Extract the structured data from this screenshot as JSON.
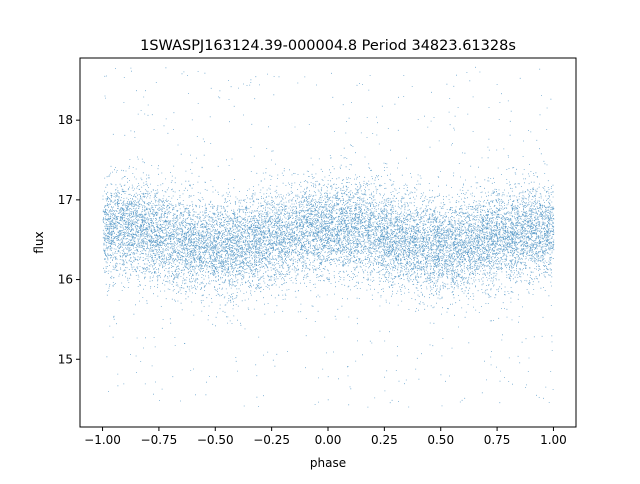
{
  "chart_data": {
    "type": "scatter",
    "title": "1SWASPJ163124.39-000004.8 Period 34823.61328s",
    "xlabel": "phase",
    "ylabel": "flux",
    "xlim": [
      -1.1,
      1.1
    ],
    "ylim": [
      14.15,
      18.78
    ],
    "x_ticks": [
      -1.0,
      -0.75,
      -0.5,
      -0.25,
      0.0,
      0.25,
      0.5,
      0.75,
      1.0
    ],
    "x_tick_labels": [
      "−1.00",
      "−0.75",
      "−0.50",
      "−0.25",
      "0.00",
      "0.25",
      "0.50",
      "0.75",
      "1.00"
    ],
    "y_ticks": [
      15,
      16,
      17,
      18
    ],
    "y_tick_labels": [
      "15",
      "16",
      "17",
      "18"
    ],
    "grid": false,
    "marker_color": "#1f77b4",
    "series": [
      {
        "x": [
          -1.0,
          -0.9,
          -0.8,
          -0.7,
          -0.6,
          -0.5,
          -0.4,
          -0.3,
          -0.2,
          -0.1,
          0.0,
          0.1,
          0.2,
          0.3,
          0.4,
          0.5,
          0.6,
          0.7,
          0.8,
          0.9,
          1.0
        ],
        "y": [
          16.62,
          16.66,
          16.62,
          16.52,
          16.45,
          16.4,
          16.42,
          16.48,
          16.55,
          16.62,
          16.66,
          16.65,
          16.6,
          16.52,
          16.45,
          16.4,
          16.43,
          16.5,
          16.57,
          16.62,
          16.62
        ],
        "y_spread": [
          0.28,
          0.3,
          0.3,
          0.3,
          0.3,
          0.3,
          0.3,
          0.3,
          0.3,
          0.3,
          0.3,
          0.3,
          0.3,
          0.3,
          0.3,
          0.3,
          0.3,
          0.3,
          0.3,
          0.3,
          0.28
        ],
        "y_extent": [
          14.4,
          18.7
        ]
      }
    ]
  }
}
